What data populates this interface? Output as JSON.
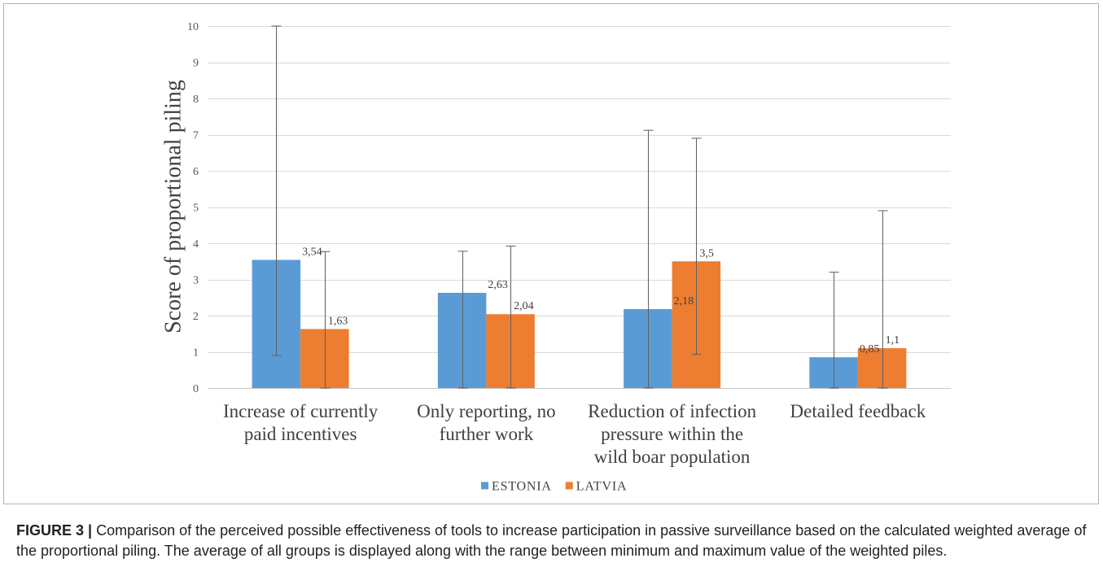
{
  "chart_data": {
    "type": "bar",
    "ylabel": "Score of proportional piling",
    "ylim": [
      0,
      10
    ],
    "yticks": [
      0,
      1,
      2,
      3,
      4,
      5,
      6,
      7,
      8,
      9,
      10
    ],
    "grid": true,
    "legend": "bottom",
    "categories": [
      "Increase of currently paid incentives",
      "Only reporting, no further work",
      "Reduction of infection pressure within the wild boar population",
      "Detailed feedback"
    ],
    "series": [
      {
        "name": "ESTONIA",
        "color": "#5B9BD5",
        "values": [
          3.54,
          2.63,
          2.18,
          0.85
        ],
        "data_labels": [
          "3,54",
          "2,63",
          "2,18",
          "0,85"
        ],
        "min": [
          0.9,
          0,
          0,
          0
        ],
        "max": [
          10,
          3.78,
          7.12,
          3.2
        ]
      },
      {
        "name": "LATVIA",
        "color": "#ED7D31",
        "values": [
          1.63,
          2.04,
          3.5,
          1.1
        ],
        "data_labels": [
          "1,63",
          "2,04",
          "3,5",
          "1,1"
        ],
        "min": [
          0,
          0,
          0.93,
          0
        ],
        "max": [
          3.77,
          3.92,
          6.9,
          4.9
        ]
      }
    ]
  },
  "caption": {
    "label": "FIGURE 3 |",
    "text": "Comparison of the perceived possible effectiveness of tools to increase participation in passive surveillance based on the calculated weighted average of the proportional piling. The average of all groups is displayed along with the range between minimum and maximum value of the weighted piles."
  }
}
